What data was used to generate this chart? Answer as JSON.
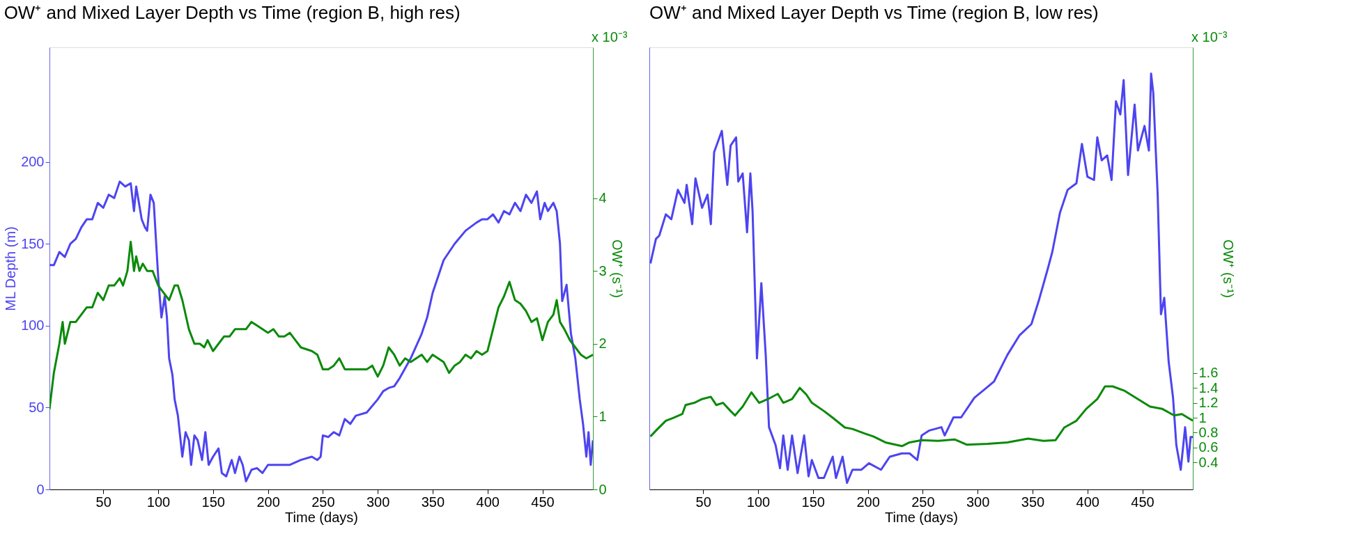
{
  "chart_data": [
    {
      "type": "line",
      "title": "OW⁺ and Mixed Layer Depth vs Time (region B, high res)",
      "xlabel": "Time (days)",
      "ylabel": "ML Depth (m)",
      "y2label": "OW⁺ (s⁻¹)",
      "annotations": [
        "x 10⁻³"
      ],
      "grid": false,
      "xlim": [
        1,
        496
      ],
      "xticks": [
        50,
        100,
        150,
        200,
        250,
        300,
        350,
        400,
        450
      ],
      "ylim": [
        0,
        270
      ],
      "yticks": [
        0,
        50,
        100,
        150,
        200
      ],
      "y2lim": [
        0,
        6.07
      ],
      "y2ticks": [
        0,
        1,
        2,
        3,
        4
      ],
      "series": [
        {
          "color": "#4d44f0",
          "x": [
            1,
            5,
            10,
            15,
            20,
            25,
            30,
            35,
            40,
            45,
            50,
            55,
            60,
            65,
            70,
            75,
            78,
            80,
            85,
            88,
            90,
            93,
            96,
            100,
            103,
            106,
            108,
            110,
            113,
            115,
            118,
            122,
            125,
            128,
            130,
            133,
            136,
            140,
            143,
            146,
            150,
            155,
            158,
            162,
            167,
            170,
            174,
            177,
            180,
            185,
            190,
            195,
            200,
            210,
            220,
            230,
            240,
            245,
            248,
            250,
            255,
            260,
            265,
            270,
            275,
            280,
            290,
            300,
            305,
            310,
            315,
            320,
            330,
            340,
            345,
            350,
            355,
            360,
            365,
            370,
            380,
            390,
            395,
            400,
            405,
            410,
            415,
            420,
            425,
            430,
            435,
            440,
            445,
            448,
            452,
            455,
            460,
            463,
            466,
            468,
            472,
            476,
            480,
            484,
            487,
            490,
            492,
            494,
            496
          ],
          "values": [
            137,
            137,
            145,
            142,
            150,
            153,
            160,
            165,
            165,
            175,
            172,
            180,
            178,
            188,
            185,
            187,
            170,
            185,
            165,
            160,
            158,
            180,
            175,
            130,
            105,
            118,
            105,
            80,
            70,
            55,
            45,
            20,
            35,
            30,
            15,
            33,
            30,
            18,
            35,
            15,
            20,
            25,
            10,
            8,
            18,
            10,
            20,
            15,
            5,
            12,
            13,
            10,
            15,
            15,
            15,
            18,
            20,
            18,
            20,
            33,
            32,
            35,
            33,
            43,
            40,
            45,
            47,
            55,
            60,
            62,
            63,
            68,
            80,
            95,
            105,
            120,
            130,
            140,
            145,
            150,
            158,
            163,
            165,
            165,
            168,
            163,
            170,
            168,
            175,
            170,
            180,
            175,
            182,
            165,
            175,
            170,
            175,
            170,
            150,
            115,
            125,
            95,
            80,
            55,
            40,
            20,
            35,
            15,
            30
          ]
        },
        {
          "color": "#0a8a0a",
          "axis": "y2",
          "x": [
            1,
            5,
            10,
            13,
            15,
            20,
            25,
            30,
            35,
            40,
            45,
            50,
            55,
            60,
            65,
            68,
            72,
            75,
            78,
            80,
            83,
            86,
            90,
            95,
            100,
            105,
            110,
            115,
            118,
            122,
            128,
            133,
            138,
            142,
            145,
            150,
            155,
            160,
            165,
            170,
            175,
            180,
            185,
            190,
            195,
            200,
            205,
            210,
            215,
            220,
            225,
            230,
            240,
            245,
            250,
            255,
            260,
            265,
            270,
            280,
            290,
            295,
            300,
            305,
            310,
            315,
            320,
            325,
            330,
            340,
            345,
            350,
            355,
            360,
            365,
            370,
            375,
            380,
            385,
            390,
            395,
            400,
            405,
            410,
            415,
            420,
            425,
            430,
            435,
            440,
            445,
            450,
            455,
            460,
            463,
            466,
            470,
            475,
            480,
            485,
            490,
            496
          ],
          "values": [
            1.1,
            1.6,
            2.0,
            2.3,
            2.0,
            2.3,
            2.3,
            2.4,
            2.5,
            2.5,
            2.7,
            2.6,
            2.8,
            2.8,
            2.9,
            2.8,
            3.0,
            3.4,
            3.0,
            3.2,
            3.0,
            3.1,
            3.0,
            3.0,
            2.8,
            2.7,
            2.6,
            2.8,
            2.8,
            2.6,
            2.2,
            2.0,
            2.0,
            1.95,
            2.05,
            1.9,
            2.0,
            2.1,
            2.1,
            2.2,
            2.2,
            2.2,
            2.3,
            2.25,
            2.2,
            2.15,
            2.2,
            2.1,
            2.1,
            2.15,
            2.05,
            1.95,
            1.9,
            1.85,
            1.65,
            1.65,
            1.7,
            1.8,
            1.65,
            1.65,
            1.65,
            1.7,
            1.55,
            1.7,
            1.95,
            1.85,
            1.7,
            1.8,
            1.75,
            1.85,
            1.75,
            1.85,
            1.8,
            1.75,
            1.6,
            1.7,
            1.75,
            1.85,
            1.8,
            1.9,
            1.85,
            1.9,
            2.2,
            2.5,
            2.65,
            2.85,
            2.6,
            2.55,
            2.45,
            2.3,
            2.35,
            2.05,
            2.3,
            2.4,
            2.6,
            2.3,
            2.2,
            2.05,
            1.95,
            1.85,
            1.8,
            1.85
          ]
        }
      ]
    },
    {
      "type": "line",
      "title": "OW⁺ and Mixed Layer Depth vs Time (region B, low res)",
      "xlabel": "Time (days)",
      "y2label": "OW⁺ (s⁻¹)",
      "annotations": [
        "x 10⁻³"
      ],
      "grid": false,
      "tick_labels": [
        "x",
        "y2"
      ],
      "xlim": [
        1,
        496
      ],
      "xticks": [
        50,
        100,
        150,
        200,
        250,
        300,
        350,
        400,
        450
      ],
      "ylim": [
        0,
        270
      ],
      "y2lim": [
        0.04,
        5.96
      ],
      "y2ticks": [
        0.4,
        0.6,
        0.8,
        1,
        1.2,
        1.4,
        1.6
      ],
      "series": [
        {
          "color": "#4d44f0",
          "x": [
            2,
            7,
            10,
            16,
            21,
            27,
            33,
            35,
            40,
            43,
            49,
            54,
            57,
            60,
            67,
            72,
            75,
            80,
            82,
            86,
            90,
            93,
            95,
            99,
            103,
            107,
            110,
            116,
            120,
            123,
            127,
            131,
            136,
            142,
            146,
            149,
            155,
            160,
            168,
            171,
            177,
            181,
            186,
            194,
            201,
            212,
            220,
            231,
            238,
            245,
            249,
            256,
            267,
            270,
            278,
            285,
            297,
            308,
            315,
            327,
            338,
            349,
            356,
            364,
            368,
            375,
            382,
            390,
            395,
            400,
            406,
            409,
            413,
            418,
            422,
            426,
            430,
            433,
            437,
            443,
            446,
            452,
            456,
            458,
            460,
            464,
            467,
            470,
            474,
            478,
            481,
            485,
            489,
            492,
            494,
            496
          ],
          "values": [
            138,
            153,
            155,
            168,
            165,
            183,
            175,
            186,
            162,
            190,
            172,
            180,
            162,
            206,
            219,
            186,
            210,
            215,
            188,
            193,
            157,
            193,
            170,
            80,
            126,
            82,
            38,
            27,
            13,
            33,
            12,
            33,
            10,
            33,
            8,
            18,
            7,
            7,
            20,
            7,
            20,
            4,
            12,
            12,
            16,
            12,
            20,
            22,
            22,
            18,
            33,
            36,
            38,
            33,
            44,
            44,
            56,
            62,
            66,
            82,
            94,
            101,
            116,
            135,
            145,
            169,
            183,
            187,
            211,
            191,
            189,
            215,
            201,
            204,
            189,
            237,
            229,
            250,
            192,
            235,
            207,
            222,
            207,
            254,
            242,
            180,
            107,
            117,
            78,
            56,
            27,
            12,
            38,
            17,
            32,
            32
          ]
        },
        {
          "color": "#0a8a0a",
          "axis": "y2",
          "x": [
            2,
            8.5,
            16,
            23,
            31,
            34,
            42,
            49,
            57,
            62,
            68,
            75,
            79,
            86,
            94,
            101,
            109,
            118,
            123,
            131,
            138,
            144,
            149,
            160,
            168,
            179,
            186,
            197,
            205,
            216,
            231,
            238,
            249,
            264,
            279,
            290,
            309,
            327,
            346,
            360,
            371,
            379,
            390,
            399,
            409,
            416,
            423,
            434,
            446,
            457,
            468,
            479,
            486,
            496
          ],
          "values": [
            0.75,
            0.85,
            0.96,
            1.0,
            1.05,
            1.17,
            1.2,
            1.25,
            1.28,
            1.17,
            1.2,
            1.09,
            1.03,
            1.15,
            1.34,
            1.2,
            1.25,
            1.32,
            1.2,
            1.25,
            1.4,
            1.31,
            1.2,
            1.09,
            1.0,
            0.87,
            0.85,
            0.79,
            0.75,
            0.67,
            0.62,
            0.67,
            0.7,
            0.69,
            0.71,
            0.64,
            0.65,
            0.67,
            0.72,
            0.69,
            0.7,
            0.87,
            0.96,
            1.12,
            1.25,
            1.42,
            1.42,
            1.36,
            1.25,
            1.15,
            1.12,
            1.03,
            1.05,
            0.96
          ]
        }
      ]
    }
  ]
}
